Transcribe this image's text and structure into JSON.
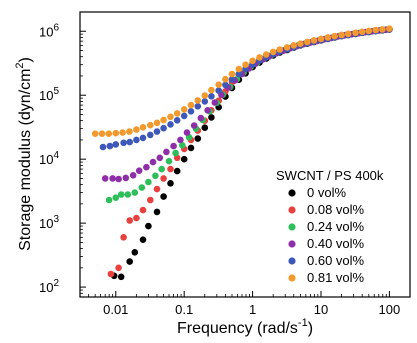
{
  "chart_data": {
    "type": "scatter",
    "xlabel": "Frequency (rad/s",
    "xlabel_sup": "-1",
    "xlabel_end": ")",
    "ylabel": "Storage modulus (dyn/cm",
    "ylabel_sup": "2",
    "ylabel_end": ")",
    "x_scale": "log",
    "y_scale": "log",
    "xlim": [
      0.003,
      200
    ],
    "ylim": [
      70,
      2000000
    ],
    "x_ticks": [
      {
        "value": 0.01,
        "label": "0.01"
      },
      {
        "value": 0.1,
        "label": "0.1"
      },
      {
        "value": 1,
        "label": "1"
      },
      {
        "value": 10,
        "label": "10"
      },
      {
        "value": 100,
        "label": "100"
      }
    ],
    "y_ticks": [
      {
        "value": 100,
        "base": "10",
        "exp": "2"
      },
      {
        "value": 1000,
        "base": "10",
        "exp": "3"
      },
      {
        "value": 10000,
        "base": "10",
        "exp": "4"
      },
      {
        "value": 100000,
        "base": "10",
        "exp": "5"
      },
      {
        "value": 1000000,
        "base": "10",
        "exp": "6"
      }
    ],
    "legend_title": "SWCNT / PS 400k",
    "legend_position": "center-right",
    "grid": false,
    "series": [
      {
        "name": "0 vol%",
        "color": "#000000",
        "x": [
          0.0095,
          0.012,
          0.016,
          0.019,
          0.025,
          0.03,
          0.04,
          0.05,
          0.063,
          0.079,
          0.1,
          0.126,
          0.158,
          0.2,
          0.25,
          0.32,
          0.4,
          0.5,
          0.63,
          0.79,
          1,
          1.26,
          1.58,
          2,
          2.5,
          3.2,
          4,
          5,
          6.3,
          7.9,
          10,
          12.6,
          15.8,
          20,
          25,
          32,
          40,
          50,
          63,
          79,
          100
        ],
        "y": [
          150,
          145,
          250,
          350,
          550,
          900,
          1500,
          2600,
          4200,
          6500,
          10000,
          15000,
          21000,
          31000,
          45000,
          65000,
          95000,
          130000,
          175000,
          220000,
          275000,
          325000,
          375000,
          420000,
          465000,
          510000,
          555000,
          600000,
          640000,
          680000,
          720000,
          760000,
          800000,
          840000,
          875000,
          910000,
          945000,
          975000,
          1005000,
          1035000,
          1060000
        ]
      },
      {
        "name": "0.08 vol%",
        "color": "#e8403e",
        "x": [
          0.0085,
          0.011,
          0.013,
          0.016,
          0.02,
          0.025,
          0.032,
          0.04,
          0.05,
          0.063,
          0.079,
          0.1,
          0.126,
          0.158,
          0.2,
          0.25,
          0.32,
          0.4,
          0.5,
          0.63,
          0.79,
          1,
          1.26,
          1.58,
          2,
          2.5,
          3.2,
          4,
          5,
          6.3,
          7.9,
          10,
          12.6,
          15.8,
          20,
          25,
          32,
          40,
          50,
          63,
          79,
          100
        ],
        "y": [
          160,
          200,
          600,
          1100,
          1200,
          1600,
          2300,
          3400,
          5000,
          7000,
          10500,
          14500,
          20000,
          28000,
          40000,
          58000,
          82000,
          115000,
          160000,
          210000,
          260000,
          315000,
          365000,
          415000,
          460000,
          505000,
          550000,
          595000,
          635000,
          675000,
          715000,
          755000,
          795000,
          835000,
          870000,
          905000,
          940000,
          970000,
          1000000,
          1030000,
          1055000,
          1080000
        ]
      },
      {
        "name": "0.24 vol%",
        "color": "#2fbf5a",
        "x": [
          0.008,
          0.01,
          0.012,
          0.015,
          0.019,
          0.024,
          0.03,
          0.038,
          0.047,
          0.06,
          0.075,
          0.094,
          0.118,
          0.149,
          0.187,
          0.235,
          0.3,
          0.37,
          0.47,
          0.59,
          0.74,
          0.93,
          1.17,
          1.47,
          1.85,
          2.3,
          2.9,
          3.7,
          4.6,
          5.8,
          7.3,
          9.2,
          11.6,
          14.6,
          18.4,
          23,
          29,
          37,
          46,
          58,
          73,
          92,
          100
        ],
        "y": [
          2300,
          2500,
          2800,
          2800,
          3000,
          3600,
          4400,
          5500,
          7000,
          9300,
          12500,
          16500,
          22000,
          30000,
          41000,
          56000,
          76000,
          102000,
          135000,
          178000,
          225000,
          275000,
          325000,
          375000,
          420000,
          465000,
          510000,
          555000,
          600000,
          640000,
          680000,
          720000,
          760000,
          800000,
          840000,
          875000,
          910000,
          945000,
          975000,
          1005000,
          1035000,
          1060000,
          1080000
        ]
      },
      {
        "name": "0.40 vol%",
        "color": "#8e2ea8",
        "x": [
          0.007,
          0.009,
          0.011,
          0.014,
          0.018,
          0.022,
          0.028,
          0.035,
          0.044,
          0.055,
          0.07,
          0.088,
          0.11,
          0.14,
          0.175,
          0.22,
          0.28,
          0.35,
          0.44,
          0.55,
          0.7,
          0.88,
          1.1,
          1.4,
          1.75,
          2.2,
          2.8,
          3.5,
          4.4,
          5.5,
          7,
          8.8,
          11,
          14,
          17.5,
          22,
          28,
          35,
          44,
          55,
          70,
          88,
          100
        ],
        "y": [
          5000,
          5000,
          4900,
          5100,
          5600,
          6600,
          7500,
          9000,
          10500,
          13000,
          16000,
          20000,
          26000,
          33500,
          44000,
          58000,
          77000,
          101000,
          132000,
          170000,
          215000,
          262000,
          310000,
          360000,
          405000,
          450000,
          495000,
          540000,
          582000,
          625000,
          665000,
          705000,
          745000,
          785000,
          825000,
          860000,
          895000,
          930000,
          965000,
          995000,
          1025000,
          1055000,
          1075000
        ]
      },
      {
        "name": "0.60 vol%",
        "color": "#3d58b8",
        "x": [
          0.0065,
          0.0082,
          0.01,
          0.013,
          0.016,
          0.02,
          0.025,
          0.032,
          0.04,
          0.05,
          0.063,
          0.079,
          0.1,
          0.126,
          0.158,
          0.2,
          0.25,
          0.32,
          0.4,
          0.5,
          0.63,
          0.79,
          1,
          1.26,
          1.58,
          2,
          2.5,
          3.2,
          4,
          5,
          6.3,
          7.9,
          10,
          12.6,
          15.8,
          20,
          25,
          32,
          40,
          50,
          63,
          79,
          100
        ],
        "y": [
          15500,
          16000,
          17000,
          18000,
          18500,
          20000,
          21500,
          24000,
          27000,
          30500,
          35000,
          40500,
          47500,
          56000,
          67000,
          80000,
          96000,
          118000,
          145000,
          177000,
          215000,
          258000,
          302000,
          348000,
          393000,
          437000,
          480000,
          523000,
          565000,
          606000,
          646000,
          686000,
          725000,
          765000,
          803000,
          842000,
          878000,
          915000,
          950000,
          985000,
          1018000,
          1050000,
          1075000
        ]
      },
      {
        "name": "0.81 vol%",
        "color": "#f39a2e",
        "x": [
          0.005,
          0.0063,
          0.0079,
          0.01,
          0.0126,
          0.0158,
          0.02,
          0.025,
          0.032,
          0.04,
          0.05,
          0.063,
          0.079,
          0.1,
          0.126,
          0.158,
          0.2,
          0.25,
          0.32,
          0.4,
          0.5,
          0.63,
          0.79,
          1,
          1.26,
          1.58,
          2,
          2.5,
          3.2,
          4,
          5,
          6.3,
          7.9,
          10,
          12.6,
          15.8,
          20,
          25,
          32,
          40,
          50,
          63,
          79,
          100
        ],
        "y": [
          25000,
          25000,
          25000,
          25500,
          26000,
          27000,
          29000,
          31500,
          34000,
          37000,
          41000,
          46000,
          52000,
          60000,
          70000,
          83000,
          99000,
          120000,
          146000,
          178000,
          215000,
          257000,
          300000,
          345000,
          390000,
          433000,
          476000,
          518000,
          560000,
          600000,
          640000,
          680000,
          720000,
          760000,
          798000,
          836000,
          873000,
          910000,
          945000,
          980000,
          1012000,
          1045000,
          1070000,
          1095000
        ]
      }
    ]
  }
}
